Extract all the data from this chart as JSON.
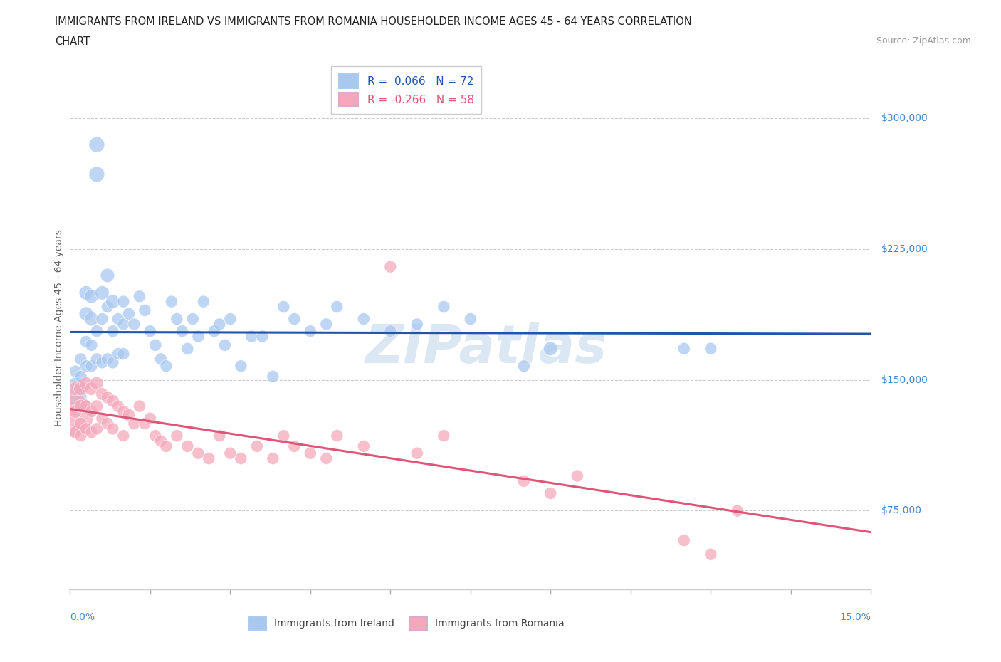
{
  "title_line1": "IMMIGRANTS FROM IRELAND VS IMMIGRANTS FROM ROMANIA HOUSEHOLDER INCOME AGES 45 - 64 YEARS CORRELATION",
  "title_line2": "CHART",
  "source": "Source: ZipAtlas.com",
  "ylabel": "Householder Income Ages 45 - 64 years",
  "y_ticks": [
    75000,
    150000,
    225000,
    300000
  ],
  "y_tick_labels": [
    "$75,000",
    "$150,000",
    "$225,000",
    "$300,000"
  ],
  "xlim": [
    0.0,
    0.15
  ],
  "ylim": [
    30000,
    330000
  ],
  "ireland_color": "#A8C8F0",
  "romania_color": "#F5A8BC",
  "ireland_line_color": "#2255AA",
  "romania_line_color": "#DD5577",
  "ireland_R": 0.066,
  "ireland_N": 72,
  "romania_R": -0.266,
  "romania_N": 58,
  "watermark": "ZIPatlas",
  "background_color": "#FFFFFF",
  "grid_color": "#CCCCCC",
  "ireland_scatter_x": [
    0.001,
    0.001,
    0.001,
    0.001,
    0.002,
    0.002,
    0.002,
    0.002,
    0.002,
    0.003,
    0.003,
    0.003,
    0.003,
    0.004,
    0.004,
    0.004,
    0.004,
    0.005,
    0.005,
    0.005,
    0.005,
    0.006,
    0.006,
    0.006,
    0.007,
    0.007,
    0.007,
    0.008,
    0.008,
    0.008,
    0.009,
    0.009,
    0.01,
    0.01,
    0.01,
    0.011,
    0.012,
    0.013,
    0.014,
    0.015,
    0.016,
    0.017,
    0.018,
    0.019,
    0.02,
    0.021,
    0.022,
    0.023,
    0.024,
    0.025,
    0.027,
    0.028,
    0.029,
    0.03,
    0.032,
    0.034,
    0.036,
    0.038,
    0.04,
    0.042,
    0.045,
    0.048,
    0.05,
    0.055,
    0.06,
    0.065,
    0.07,
    0.075,
    0.085,
    0.09,
    0.115,
    0.12
  ],
  "ireland_scatter_y": [
    155000,
    148000,
    143000,
    138000,
    162000,
    152000,
    145000,
    140000,
    135000,
    200000,
    188000,
    172000,
    158000,
    198000,
    185000,
    170000,
    158000,
    285000,
    268000,
    178000,
    162000,
    200000,
    185000,
    160000,
    210000,
    192000,
    162000,
    195000,
    178000,
    160000,
    185000,
    165000,
    195000,
    182000,
    165000,
    188000,
    182000,
    198000,
    190000,
    178000,
    170000,
    162000,
    158000,
    195000,
    185000,
    178000,
    168000,
    185000,
    175000,
    195000,
    178000,
    182000,
    170000,
    185000,
    158000,
    175000,
    175000,
    152000,
    192000,
    185000,
    178000,
    182000,
    192000,
    185000,
    178000,
    182000,
    192000,
    185000,
    158000,
    168000,
    168000,
    168000
  ],
  "ireland_scatter_sizes": [
    150,
    150,
    150,
    150,
    150,
    150,
    150,
    150,
    150,
    200,
    200,
    150,
    150,
    200,
    200,
    150,
    150,
    250,
    250,
    150,
    150,
    200,
    150,
    150,
    200,
    150,
    150,
    200,
    150,
    150,
    150,
    150,
    150,
    150,
    150,
    150,
    150,
    150,
    150,
    150,
    150,
    150,
    150,
    150,
    150,
    150,
    150,
    150,
    150,
    150,
    150,
    150,
    150,
    150,
    150,
    150,
    150,
    150,
    150,
    150,
    150,
    150,
    150,
    150,
    150,
    150,
    150,
    150,
    150,
    200,
    150,
    150
  ],
  "romania_scatter_x": [
    0.0005,
    0.001,
    0.001,
    0.001,
    0.002,
    0.002,
    0.002,
    0.002,
    0.003,
    0.003,
    0.003,
    0.004,
    0.004,
    0.004,
    0.005,
    0.005,
    0.005,
    0.006,
    0.006,
    0.007,
    0.007,
    0.008,
    0.008,
    0.009,
    0.01,
    0.01,
    0.011,
    0.012,
    0.013,
    0.014,
    0.015,
    0.016,
    0.017,
    0.018,
    0.02,
    0.022,
    0.024,
    0.026,
    0.028,
    0.03,
    0.032,
    0.035,
    0.038,
    0.04,
    0.042,
    0.045,
    0.048,
    0.05,
    0.055,
    0.06,
    0.065,
    0.07,
    0.085,
    0.09,
    0.095,
    0.115,
    0.12,
    0.125
  ],
  "romania_scatter_y": [
    130000,
    145000,
    132000,
    120000,
    145000,
    135000,
    125000,
    118000,
    148000,
    135000,
    122000,
    145000,
    132000,
    120000,
    148000,
    135000,
    122000,
    142000,
    128000,
    140000,
    125000,
    138000,
    122000,
    135000,
    132000,
    118000,
    130000,
    125000,
    135000,
    125000,
    128000,
    118000,
    115000,
    112000,
    118000,
    112000,
    108000,
    105000,
    118000,
    108000,
    105000,
    112000,
    105000,
    118000,
    112000,
    108000,
    105000,
    118000,
    112000,
    215000,
    108000,
    118000,
    92000,
    85000,
    95000,
    58000,
    50000,
    75000
  ],
  "romania_scatter_sizes": [
    1800,
    200,
    180,
    160,
    200,
    180,
    160,
    150,
    180,
    160,
    150,
    180,
    160,
    150,
    180,
    160,
    150,
    160,
    150,
    160,
    150,
    160,
    150,
    150,
    150,
    150,
    150,
    150,
    150,
    150,
    150,
    150,
    150,
    150,
    150,
    150,
    150,
    150,
    150,
    150,
    150,
    150,
    150,
    150,
    150,
    150,
    150,
    150,
    150,
    150,
    150,
    150,
    150,
    150,
    150,
    150,
    150,
    150
  ]
}
